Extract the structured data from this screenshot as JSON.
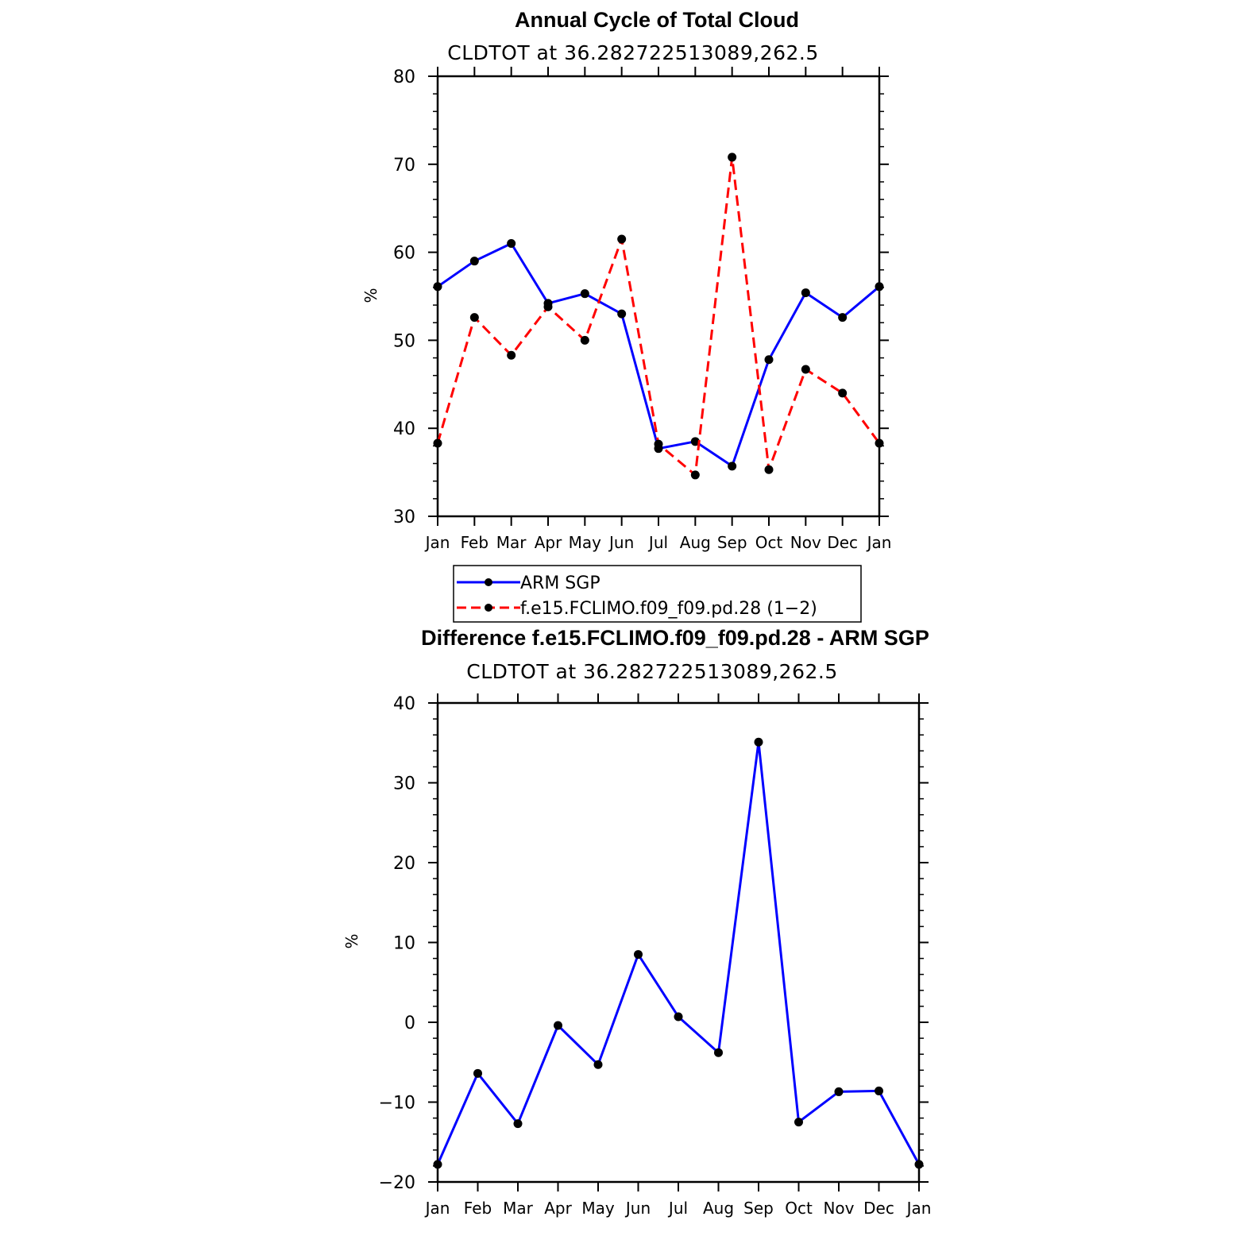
{
  "chart_data": [
    {
      "type": "line",
      "title": "Annual Cycle of Total Cloud",
      "subtitle": "CLDTOT at 36.282722513089,262.5",
      "ylabel": "%",
      "xlabel": "",
      "categories": [
        "Jan",
        "Feb",
        "Mar",
        "Apr",
        "May",
        "Jun",
        "Jul",
        "Aug",
        "Sep",
        "Oct",
        "Nov",
        "Dec",
        "Jan"
      ],
      "ylim": [
        30,
        80
      ],
      "yticks": [
        30,
        40,
        50,
        60,
        70,
        80
      ],
      "ytick_labels": [
        "30",
        "40",
        "50",
        "60",
        "70",
        "80"
      ],
      "grid": false,
      "legend_position": "below",
      "series": [
        {
          "name": "ARM SGP",
          "color": "#0000ff",
          "dash": "solid",
          "values": [
            56.1,
            59.0,
            61.0,
            54.2,
            55.3,
            53.0,
            37.7,
            38.5,
            35.7,
            47.8,
            55.4,
            52.6,
            56.1
          ]
        },
        {
          "name": "f.e15.FCLIMO.f09_f09.pd.28 (1−2)",
          "color": "#ff0000",
          "dash": "dashed",
          "values": [
            38.3,
            52.6,
            48.3,
            53.8,
            50.0,
            61.5,
            38.2,
            34.7,
            70.8,
            35.3,
            46.7,
            44.0,
            38.3
          ]
        }
      ]
    },
    {
      "type": "line",
      "title": "Difference f.e15.FCLIMO.f09_f09.pd.28 - ARM SGP",
      "subtitle": "CLDTOT at 36.282722513089,262.5",
      "ylabel": "%",
      "xlabel": "",
      "categories": [
        "Jan",
        "Feb",
        "Mar",
        "Apr",
        "May",
        "Jun",
        "Jul",
        "Aug",
        "Sep",
        "Oct",
        "Nov",
        "Dec",
        "Jan"
      ],
      "ylim": [
        -20,
        40
      ],
      "yticks": [
        -20,
        -10,
        0,
        10,
        20,
        30,
        40
      ],
      "ytick_labels": [
        "−20",
        "−10",
        "0",
        "10",
        "20",
        "30",
        "40"
      ],
      "grid": false,
      "series": [
        {
          "color": "#0000ff",
          "dash": "solid",
          "values": [
            -17.8,
            -6.4,
            -12.7,
            -0.4,
            -5.3,
            8.5,
            0.7,
            -3.8,
            35.1,
            -12.5,
            -8.7,
            -8.6,
            -17.8
          ]
        }
      ]
    }
  ]
}
